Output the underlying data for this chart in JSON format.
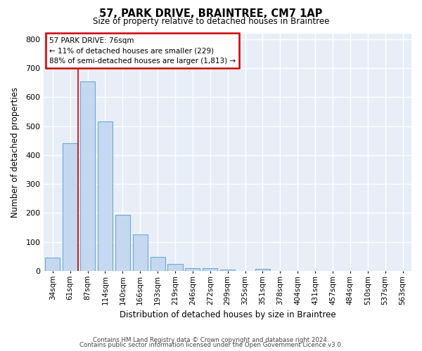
{
  "title": "57, PARK DRIVE, BRAINTREE, CM7 1AP",
  "subtitle": "Size of property relative to detached houses in Braintree",
  "xlabel": "Distribution of detached houses by size in Braintree",
  "ylabel": "Number of detached properties",
  "property_label": "57 PARK DRIVE: 76sqm",
  "annotation_line1": "← 11% of detached houses are smaller (229)",
  "annotation_line2": "88% of semi-detached houses are larger (1,813) →",
  "bin_labels": [
    "34sqm",
    "61sqm",
    "87sqm",
    "114sqm",
    "140sqm",
    "166sqm",
    "193sqm",
    "219sqm",
    "246sqm",
    "272sqm",
    "299sqm",
    "325sqm",
    "351sqm",
    "378sqm",
    "404sqm",
    "431sqm",
    "457sqm",
    "484sqm",
    "510sqm",
    "537sqm",
    "563sqm"
  ],
  "bar_values": [
    45,
    440,
    655,
    515,
    193,
    125,
    48,
    25,
    10,
    10,
    5,
    0,
    8,
    0,
    0,
    0,
    0,
    0,
    0,
    0,
    0
  ],
  "bar_color": "#c5d8f0",
  "bar_edge_color": "#6aaad4",
  "vline_x_data": 1.46,
  "vline_color": "#cc0000",
  "background_color": "#e8eef8",
  "grid_color": "#ffffff",
  "ylim": [
    0,
    820
  ],
  "yticks": [
    0,
    100,
    200,
    300,
    400,
    500,
    600,
    700,
    800
  ],
  "footer_line1": "Contains HM Land Registry data © Crown copyright and database right 2024.",
  "footer_line2": "Contains public sector information licensed under the Open Government Licence v3.0."
}
